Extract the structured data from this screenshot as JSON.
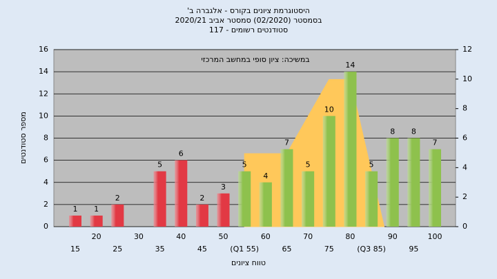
{
  "chart_data": {
    "type": "bar",
    "title": "היסטוגרמת ציונים בקורס - אלגברה ב'",
    "subtitle": "בסמסטר (02/2020) סמסטר אביב 2020/21",
    "subtitle2": "סטודנטים רשומים - 117",
    "annotation": "במשיכה: ציון סופי במחשב המרכזי",
    "x_label": "טווח ציונים",
    "y_label": "מספר סטודנטים",
    "categories": [
      "15",
      "20",
      "25",
      "30",
      "35",
      "40",
      "45",
      "50",
      "(Q1 55)",
      "60",
      "65",
      "70",
      "75",
      "80",
      "(Q3 85)",
      "90",
      "95",
      "100"
    ],
    "values": [
      1,
      1,
      2,
      null,
      5,
      6,
      2,
      3,
      5,
      4,
      7,
      5,
      10,
      14,
      5,
      8,
      8,
      7
    ],
    "colors": [
      "#e23a44",
      "#e23a44",
      "#e23a44",
      "#e23a44",
      "#e23a44",
      "#e23a44",
      "#e23a44",
      "#e23a44",
      "#8fc24e",
      "#8fc24e",
      "#8fc24e",
      "#8fc24e",
      "#8fc24e",
      "#8fc24e",
      "#8fc24e",
      "#8fc24e",
      "#8fc24e",
      "#8fc24e"
    ],
    "overlay": {
      "color": "#ffc85a",
      "x": [
        55,
        55,
        65,
        75,
        80,
        88
      ],
      "values": [
        0,
        6.6,
        6.6,
        13.3,
        13.3,
        0
      ]
    },
    "ylim": [
      0,
      16
    ],
    "yticks": [
      0,
      2,
      4,
      6,
      8,
      10,
      12,
      14,
      16
    ],
    "y2lim": [
      0,
      12
    ],
    "y2ticks": [
      0,
      2,
      4,
      6,
      8,
      10,
      12
    ],
    "grid": true
  }
}
